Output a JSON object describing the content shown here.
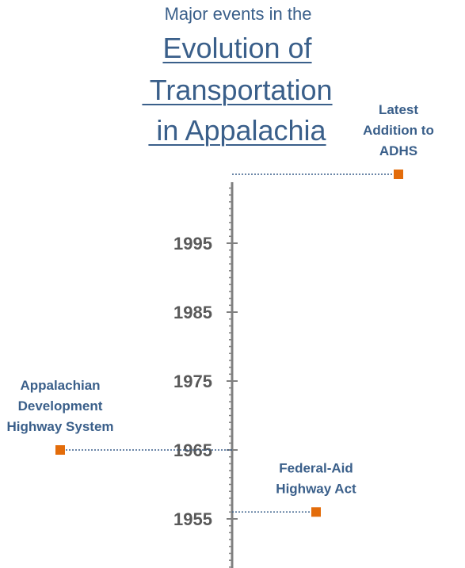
{
  "title": {
    "line1": "Major events in the",
    "line2": "Evolution of",
    "line3": " Transportation",
    "line4": " in Appalachia"
  },
  "colors": {
    "title": "#3A5F8A",
    "axis": "#808080",
    "tick_label": "#595959",
    "marker": "#E36C0A",
    "leader": "#3A5F8A"
  },
  "chart_data": {
    "type": "scatter",
    "ylim": [
      1950,
      2006
    ],
    "yticks": [
      1955,
      1965,
      1975,
      1985,
      1995
    ],
    "events": [
      {
        "label_lines": [
          "Latest",
          "Addition to",
          "ADHS"
        ],
        "year": 2005,
        "side": "right",
        "offset": 210
      },
      {
        "label_lines": [
          "Appalachian",
          "Development",
          "Highway System"
        ],
        "year": 1965,
        "side": "left",
        "offset": 217
      },
      {
        "label_lines": [
          "Federal-Aid",
          "Highway Act"
        ],
        "year": 1956,
        "side": "right",
        "offset": 106
      }
    ]
  }
}
